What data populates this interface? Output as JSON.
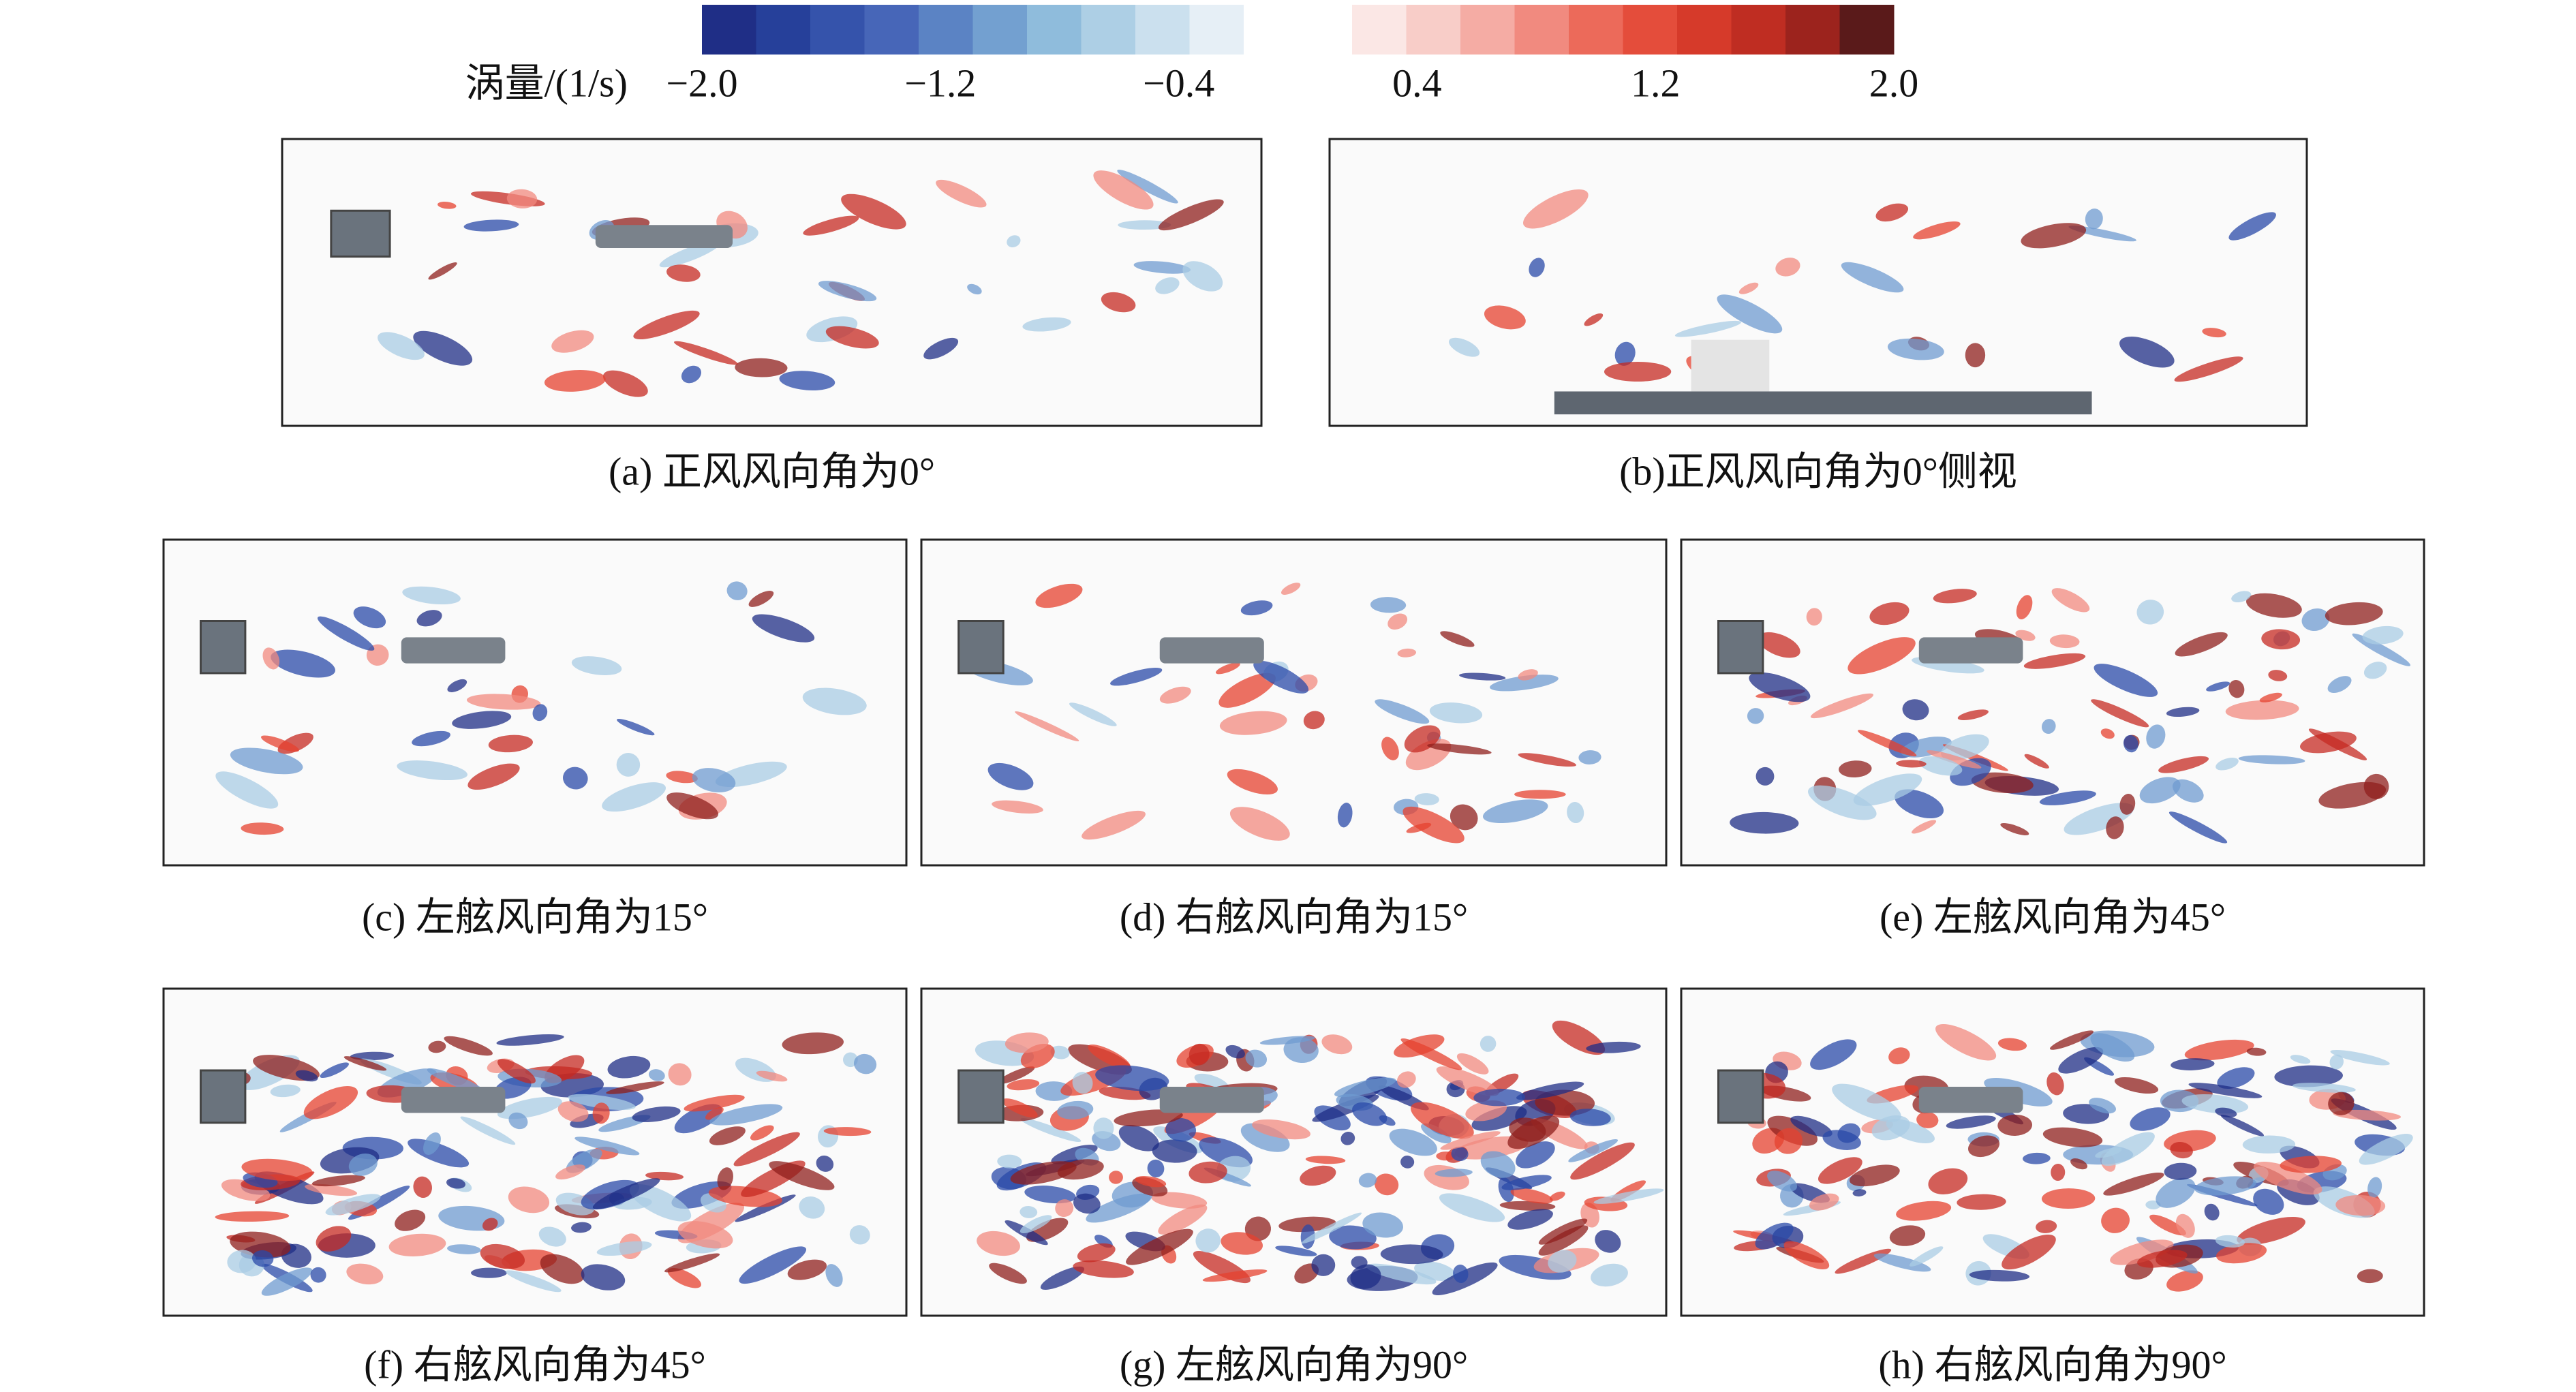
{
  "colorbar": {
    "label": "涡量/(1/s)",
    "lim": [
      -2,
      2
    ],
    "ticks": [
      {
        "value": -2,
        "label": "−2.0"
      },
      {
        "value": -1.2,
        "label": "−1.2"
      },
      {
        "value": -0.4,
        "label": "−0.4"
      },
      {
        "value": 0.4,
        "label": "0.4"
      },
      {
        "value": 1.2,
        "label": "1.2"
      },
      {
        "value": 2,
        "label": "2.0"
      }
    ],
    "colors": [
      "#1f2e86",
      "#26409a",
      "#3553ab",
      "#4766b8",
      "#5b83c4",
      "#73a0d0",
      "#8fbcdc",
      "#adcfe5",
      "#cbe0ee",
      "#e6eff6",
      "#ffffff",
      "#ffffff",
      "#fbe7e5",
      "#f8cdc8",
      "#f5aca4",
      "#f18a7f",
      "#ec6a5a",
      "#e44d3b",
      "#d63a2a",
      "#bf2d22",
      "#9c231d",
      "#5a1a1a"
    ]
  },
  "panels": [
    {
      "caption": "(a) 正风风向角为0°"
    },
    {
      "caption": "(b)正风风向角为0°侧视"
    },
    {
      "caption": "(c) 左舷风向角为15°"
    },
    {
      "caption": "(d) 右舷风向角为15°"
    },
    {
      "caption": "(e) 左舷风向角为45°"
    },
    {
      "caption": "(f) 右舷风向角为45°"
    },
    {
      "caption": "(g) 左舷风向角为90°"
    },
    {
      "caption": "(h) 右舷风向角为90°"
    }
  ]
}
